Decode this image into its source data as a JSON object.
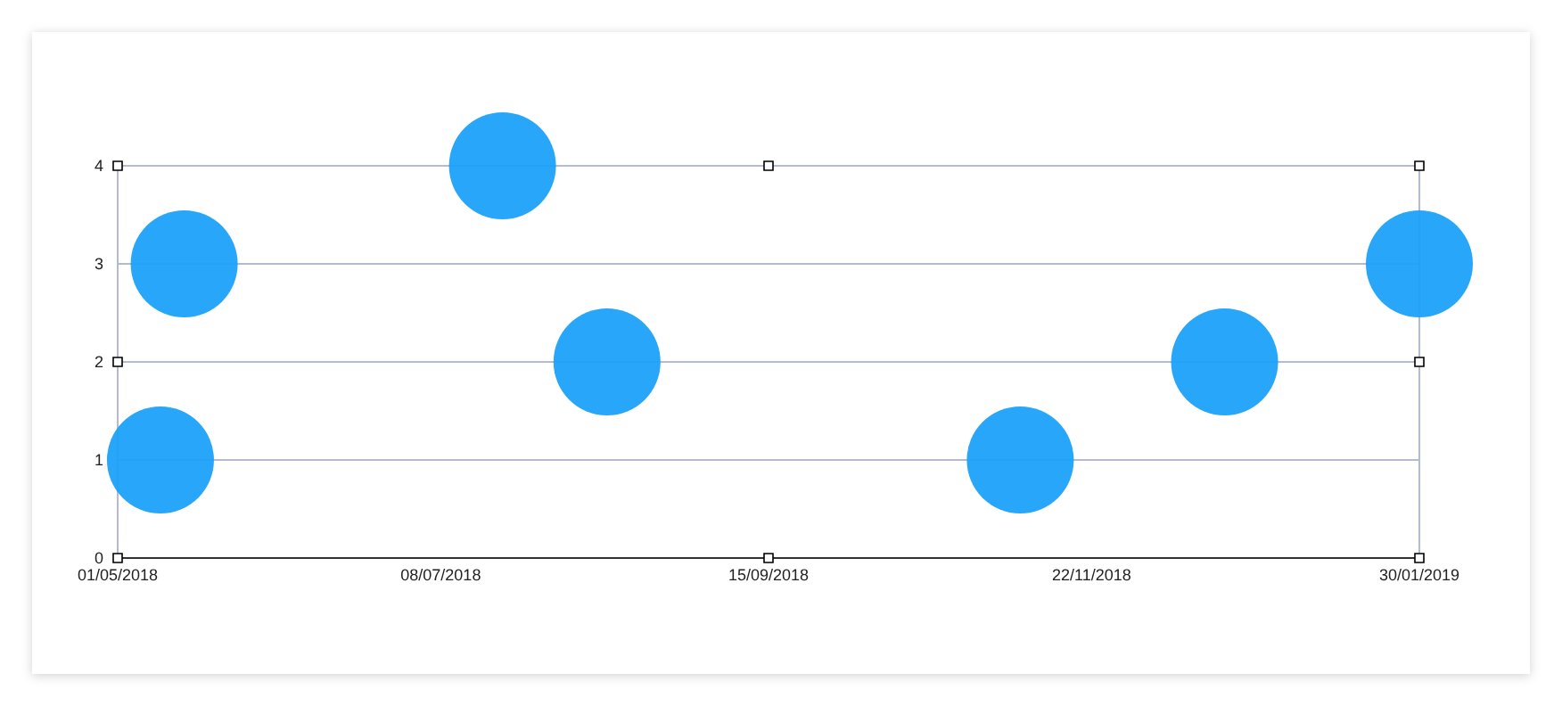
{
  "chart_data": {
    "type": "bubble",
    "x": [
      "2018-05-10",
      "2018-05-15",
      "2018-07-21",
      "2018-08-12",
      "2018-11-07",
      "2018-12-20",
      "2019-01-30"
    ],
    "values": [
      1,
      3,
      4,
      2,
      1,
      2,
      3
    ],
    "sizes": [
      1,
      1,
      1,
      1,
      1,
      1,
      1
    ],
    "color": "#1ba1fa",
    "xlim": [
      "2018-05-01",
      "2019-01-30"
    ],
    "xticks": [
      {
        "value": "2018-05-01",
        "label": "01/05/2018"
      },
      {
        "value": "2018-07-08",
        "label": "08/07/2018"
      },
      {
        "value": "2018-09-15",
        "label": "15/09/2018"
      },
      {
        "value": "2018-11-22",
        "label": "22/11/2018"
      },
      {
        "value": "2019-01-30",
        "label": "30/01/2019"
      }
    ],
    "ylim": [
      0,
      4
    ],
    "yticks": [
      0,
      1,
      2,
      3,
      4
    ],
    "grid": "y"
  }
}
